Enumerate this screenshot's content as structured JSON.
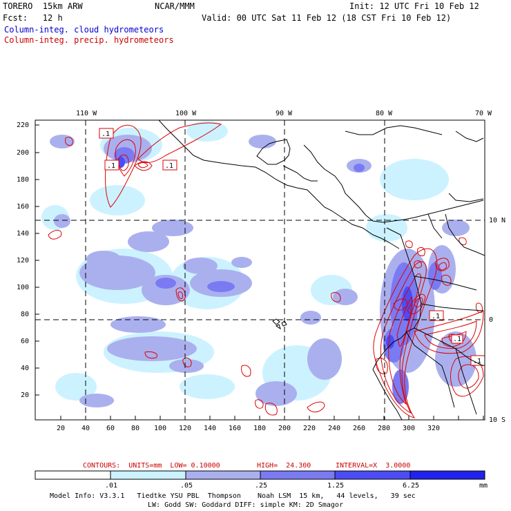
{
  "header": {
    "model": "TORERO  15km ARW",
    "org": "NCAR/MMM",
    "init": "Init: 12 UTC Fri 10 Feb 12",
    "fcst": "Fcst:   12 h",
    "valid": "Valid: 00 UTC Sat 11 Feb 12 (18 CST Fri 10 Feb 12)",
    "field_cloud": "Column-integ. cloud hydrometeors",
    "field_precip": "Column-integ. precip. hydrometeors"
  },
  "colors": {
    "cloud_label": "#0000cc",
    "precip_label": "#cc0000",
    "contour": "#dd0000"
  },
  "map": {
    "lon_labels": [
      "110 W",
      "100 W",
      "90 W",
      "80 W",
      "70 W"
    ],
    "lat_labels": [
      "10 N",
      "0",
      "10 S"
    ],
    "y_ticks": [
      "220",
      "200",
      "180",
      "160",
      "140",
      "120",
      "100",
      "80",
      "60",
      "40",
      "20"
    ],
    "x_ticks": [
      "20",
      "40",
      "60",
      "80",
      "100",
      "120",
      "140",
      "160",
      "180",
      "200",
      "220",
      "240",
      "260",
      "280",
      "300",
      "320"
    ],
    "contour_labels": [
      ".1",
      ".1",
      ".1",
      ".1",
      ".1",
      ".1"
    ]
  },
  "contours_info": {
    "units": "CONTOURS:  UNITS=mm  LOW= 0.10000",
    "high": "HIGH=  24.300",
    "interval": "INTERVAL=X  3.0000"
  },
  "colorbar": {
    "labels": [
      ".01",
      ".05",
      ".25",
      "1.25",
      "6.25"
    ],
    "unit": "mm",
    "colors": [
      "#ffffff",
      "#ccf2ff",
      "#aab0ee",
      "#7a7af2",
      "#4c4cf5",
      "#2222ee"
    ]
  },
  "footer": {
    "line1": "Model Info: V3.3.1   Tiedtke YSU PBL  Thompson    Noah LSM  15 km,   44 levels,   39 sec",
    "line2": "LW: Godd SW: Goddard DIFF: simple KM: 2D Smagor"
  }
}
